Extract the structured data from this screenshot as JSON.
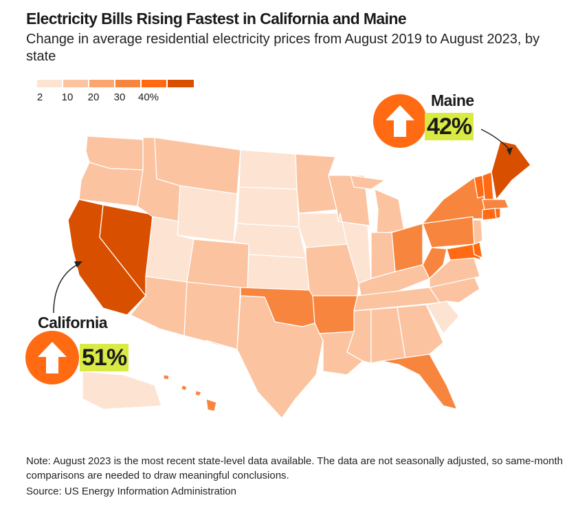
{
  "header": {
    "title": "Electricity Bills Rising Fastest in California and Maine",
    "subtitle": "Change in average residential electricity prices from August 2019 to August 2023, by state"
  },
  "legend": {
    "labels": [
      "2",
      "10",
      "20",
      "30",
      "40%"
    ],
    "colors": [
      "#fde3d2",
      "#fbc3a0",
      "#fba66f",
      "#f8853d",
      "#ff6a12",
      "#d94f00"
    ]
  },
  "callouts": {
    "maine": {
      "name": "Maine",
      "value": "42%",
      "icon": "up-arrow-icon"
    },
    "california": {
      "name": "California",
      "value": "51%",
      "icon": "up-arrow-icon"
    }
  },
  "colors": {
    "arrow_circle": "#ff6a12",
    "value_highlight": "#d9ea44",
    "map_border": "#ffffff"
  },
  "footer": {
    "note": "Note: August 2023 is the most recent state-level data available. The data are not seasonally adjusted, so same-month comparisons are needed to draw meaningful conclusions.",
    "source": "Source: US Energy Information Administration"
  }
}
